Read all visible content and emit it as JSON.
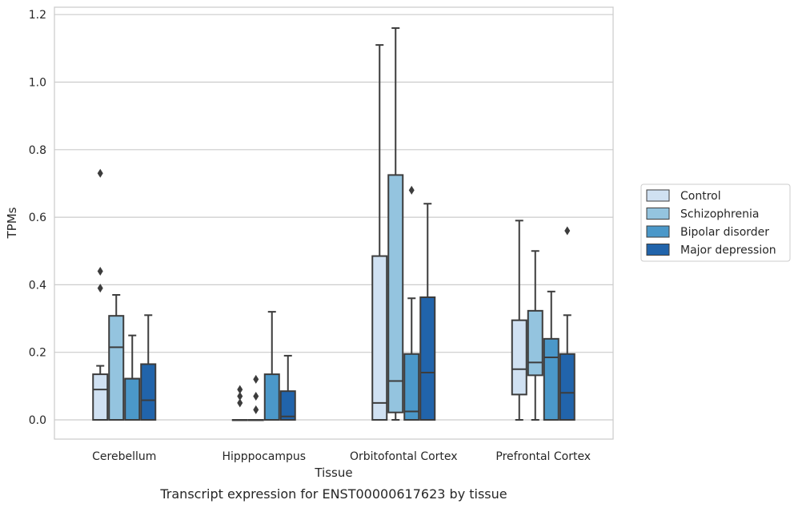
{
  "chart_data": {
    "type": "box",
    "xlabel": "Tissue",
    "ylabel": "TPMs",
    "caption": "Transcript expression for ENST00000617623 by tissue",
    "ylim": [
      -0.055,
      1.225
    ],
    "y_ticks": [
      "0.0",
      "0.2",
      "0.4",
      "0.6",
      "0.8",
      "1.0",
      "1.2"
    ],
    "y_tick_values": [
      0,
      0.2,
      0.4,
      0.6,
      0.8,
      1.0,
      1.2
    ],
    "grid": "horizontal",
    "legend_placement": "right",
    "categories": [
      "Cerebellum",
      "Hipppocampus",
      "Orbitofontal Cortex",
      "Prefrontal Cortex"
    ],
    "series": [
      {
        "name": "Control",
        "color": "#d0e1f2",
        "boxes": [
          {
            "q1": 0,
            "median": 0.09,
            "q3": 0.135,
            "whisker_low": 0,
            "whisker_high": 0.16,
            "outliers": [
              0.73,
              0.44,
              0.39
            ]
          },
          {
            "q1": 0,
            "median": 0,
            "q3": 0,
            "whisker_low": 0,
            "whisker_high": 0,
            "outliers": [
              0.09,
              0.07,
              0.05
            ]
          },
          {
            "q1": 0,
            "median": 0.05,
            "q3": 0.485,
            "whisker_low": 0,
            "whisker_high": 1.11,
            "outliers": []
          },
          {
            "q1": 0.075,
            "median": 0.15,
            "q3": 0.295,
            "whisker_low": 0,
            "whisker_high": 0.59,
            "outliers": []
          }
        ]
      },
      {
        "name": "Schizophrenia",
        "color": "#94c4df",
        "boxes": [
          {
            "q1": 0,
            "median": 0.215,
            "q3": 0.308,
            "whisker_low": 0,
            "whisker_high": 0.37,
            "outliers": []
          },
          {
            "q1": 0,
            "median": 0,
            "q3": 0,
            "whisker_low": 0,
            "whisker_high": 0,
            "outliers": [
              0.12,
              0.07,
              0.03
            ]
          },
          {
            "q1": 0.022,
            "median": 0.115,
            "q3": 0.725,
            "whisker_low": 0,
            "whisker_high": 1.16,
            "outliers": []
          },
          {
            "q1": 0.132,
            "median": 0.17,
            "q3": 0.323,
            "whisker_low": 0,
            "whisker_high": 0.5,
            "outliers": []
          }
        ]
      },
      {
        "name": "Bipolar disorder",
        "color": "#4b98c9",
        "boxes": [
          {
            "q1": 0,
            "median": 0.122,
            "q3": 0.122,
            "whisker_low": 0,
            "whisker_high": 0.25,
            "outliers": []
          },
          {
            "q1": 0,
            "median": 0,
            "q3": 0.135,
            "whisker_low": 0,
            "whisker_high": 0.32,
            "outliers": []
          },
          {
            "q1": 0,
            "median": 0.025,
            "q3": 0.195,
            "whisker_low": 0,
            "whisker_high": 0.36,
            "outliers": [
              0.68
            ]
          },
          {
            "q1": 0,
            "median": 0.185,
            "q3": 0.24,
            "whisker_low": 0,
            "whisker_high": 0.38,
            "outliers": []
          }
        ]
      },
      {
        "name": "Major depression",
        "color": "#2164ab",
        "boxes": [
          {
            "q1": 0,
            "median": 0.058,
            "q3": 0.165,
            "whisker_low": 0,
            "whisker_high": 0.31,
            "outliers": []
          },
          {
            "q1": 0,
            "median": 0.01,
            "q3": 0.085,
            "whisker_low": 0,
            "whisker_high": 0.19,
            "outliers": []
          },
          {
            "q1": 0,
            "median": 0.14,
            "q3": 0.363,
            "whisker_low": 0,
            "whisker_high": 0.64,
            "outliers": []
          },
          {
            "q1": 0,
            "median": 0.08,
            "q3": 0.195,
            "whisker_low": 0,
            "whisker_high": 0.31,
            "outliers": [
              0.56
            ]
          }
        ]
      }
    ]
  }
}
